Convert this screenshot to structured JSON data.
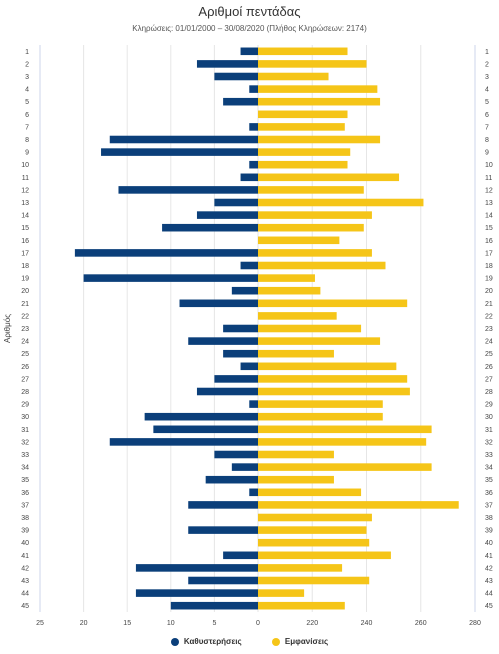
{
  "chart_data": {
    "type": "bar",
    "title": "Αριθμοί πεντάδας",
    "subtitle": "Κληρώσεις: 01/01/2000 – 30/08/2020 (Πλήθος Κληρώσεων: 2174)",
    "ylabel": "Αριθμός",
    "categories": [
      "1",
      "2",
      "3",
      "4",
      "5",
      "6",
      "7",
      "8",
      "9",
      "10",
      "11",
      "12",
      "13",
      "14",
      "15",
      "16",
      "17",
      "18",
      "19",
      "20",
      "21",
      "22",
      "23",
      "24",
      "25",
      "26",
      "27",
      "28",
      "29",
      "30",
      "31",
      "32",
      "33",
      "34",
      "35",
      "36",
      "37",
      "38",
      "39",
      "40",
      "41",
      "42",
      "43",
      "44",
      "45"
    ],
    "left_axis_ticks": [
      "25",
      "20",
      "15",
      "10",
      "5",
      "0"
    ],
    "right_axis_ticks": [
      "220",
      "240",
      "260",
      "280"
    ],
    "colors": {
      "delays": "#0b3f7a",
      "appearances": "#f5c518"
    },
    "series": [
      {
        "name": "Καθυστερήσεις",
        "values": [
          2,
          7,
          5,
          1,
          4,
          0,
          1,
          17,
          18,
          1,
          2,
          16,
          5,
          7,
          11,
          0,
          21,
          2,
          20,
          3,
          9,
          0,
          4,
          8,
          4,
          2,
          5,
          7,
          1,
          13,
          12,
          17,
          5,
          3,
          6,
          1,
          8,
          0,
          8,
          0,
          4,
          14,
          8,
          14,
          10
        ]
      },
      {
        "name": "Εμφανίσεις",
        "values": [
          233,
          240,
          226,
          244,
          245,
          233,
          232,
          245,
          234,
          233,
          252,
          239,
          261,
          242,
          239,
          230,
          242,
          247,
          221,
          223,
          255,
          229,
          238,
          245,
          228,
          251,
          255,
          256,
          246,
          246,
          264,
          262,
          228,
          264,
          228,
          238,
          274,
          242,
          240,
          241,
          249,
          231,
          241,
          217,
          232
        ]
      }
    ]
  },
  "legend": {
    "delays_label": "Καθυστερήσεις",
    "appearances_label": "Εμφανίσεις"
  }
}
